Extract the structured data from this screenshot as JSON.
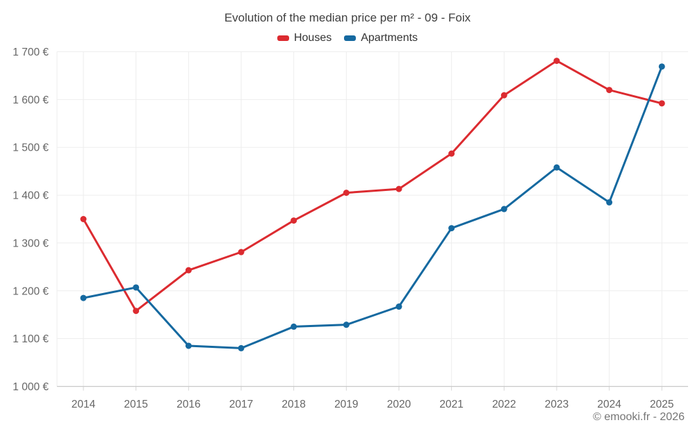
{
  "chart_data": {
    "type": "line",
    "title": "Evolution of the median price per m² - 09 - Foix",
    "categories": [
      "2014",
      "2015",
      "2016",
      "2017",
      "2018",
      "2019",
      "2020",
      "2021",
      "2022",
      "2023",
      "2024",
      "2025"
    ],
    "series": [
      {
        "name": "Houses",
        "color": "#dc2b30",
        "values": [
          1350,
          1158,
          1243,
          1281,
          1347,
          1405,
          1413,
          1487,
          1609,
          1681,
          1620,
          1592
        ]
      },
      {
        "name": "Apartments",
        "color": "#1569a0",
        "values": [
          1185,
          1207,
          1085,
          1080,
          1125,
          1129,
          1167,
          1331,
          1371,
          1458,
          1385,
          1669
        ]
      }
    ],
    "ylim": [
      1000,
      1700
    ],
    "y_ticks": [
      {
        "value": 1700,
        "label": "1 700 €"
      },
      {
        "value": 1600,
        "label": "1 600 €"
      },
      {
        "value": 1500,
        "label": "1 500 €"
      },
      {
        "value": 1400,
        "label": "1 400 €"
      },
      {
        "value": 1300,
        "label": "1 300 €"
      },
      {
        "value": 1200,
        "label": "1 200 €"
      },
      {
        "value": 1100,
        "label": "1 100 €"
      },
      {
        "value": 1000,
        "label": "1 000 €"
      }
    ],
    "grid": true,
    "legend_position": "top-center"
  },
  "footer": {
    "copyright": "© emooki.fr - 2026"
  },
  "colors": {
    "grid": "#ededed",
    "axis": "#c9c9c9",
    "tick": "#d6d6d6",
    "axis_label": "#666666",
    "title_text": "#3f3f3f",
    "legend_text": "#333333"
  }
}
